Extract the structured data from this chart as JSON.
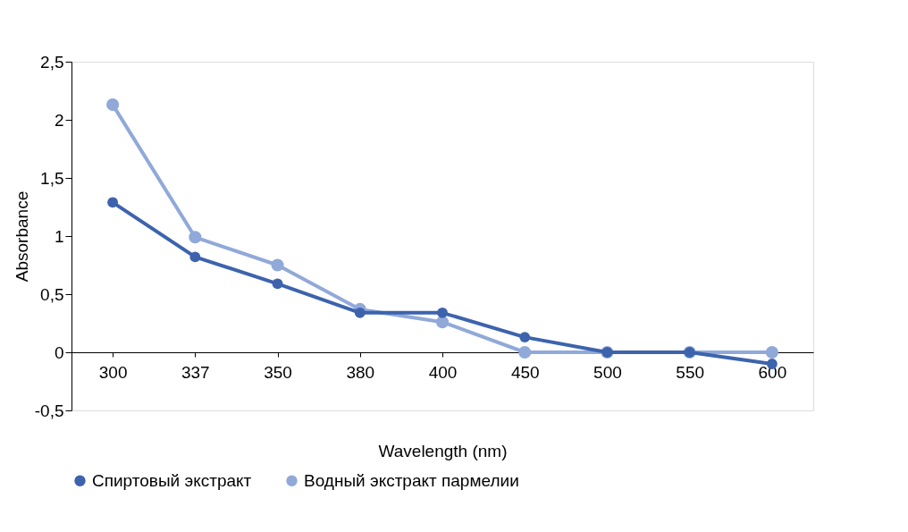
{
  "chart_data": {
    "type": "line",
    "xlabel": "Wavelength (nm)",
    "ylabel": "Absorbance",
    "categories": [
      "300",
      "337",
      "350",
      "380",
      "400",
      "450",
      "500",
      "550",
      "600"
    ],
    "series": [
      {
        "name": "Спиртовый экстракт",
        "color": "#3d63ad",
        "values": [
          1.29,
          0.82,
          0.59,
          0.34,
          0.34,
          0.13,
          0,
          0,
          -0.1
        ]
      },
      {
        "name": "Водный экстракт пармелии",
        "color": "#91a9d9",
        "values": [
          2.13,
          0.99,
          0.75,
          0.37,
          0.26,
          0,
          0,
          0,
          0
        ]
      }
    ],
    "ylim": [
      -0.5,
      2.5
    ],
    "yticks": [
      {
        "value": -0.5,
        "label": "-0,5"
      },
      0,
      {
        "value": 0.5,
        "label": "0,5"
      },
      1,
      {
        "value": 1.5,
        "label": "1,5"
      },
      2,
      {
        "value": 2.5,
        "label": "2,5"
      }
    ],
    "marker": "circle",
    "line_style": "solid",
    "grid": false,
    "legend": "bottom"
  }
}
